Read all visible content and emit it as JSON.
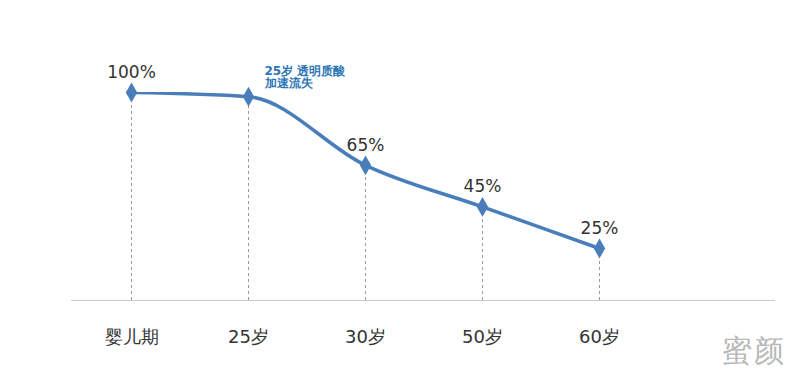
{
  "chart_data": {
    "type": "line",
    "categories": [
      "婴儿期",
      "25岁",
      "30岁",
      "50岁",
      "60岁",
      null
    ],
    "values": [
      100,
      98,
      65,
      45,
      25,
      null
    ],
    "value_labels": [
      "100%",
      null,
      "65%",
      "45%",
      "25%",
      null
    ],
    "data_labels": true,
    "color": "#4a7ebb",
    "marker": "diamond",
    "ylim": [
      0,
      100
    ],
    "yticks": [],
    "tick_labels": "x",
    "grid": false,
    "annotations": [
      {
        "text": "25岁 透明质酸\n加速流失",
        "category": "25岁"
      }
    ],
    "watermark": "蜜颜"
  }
}
